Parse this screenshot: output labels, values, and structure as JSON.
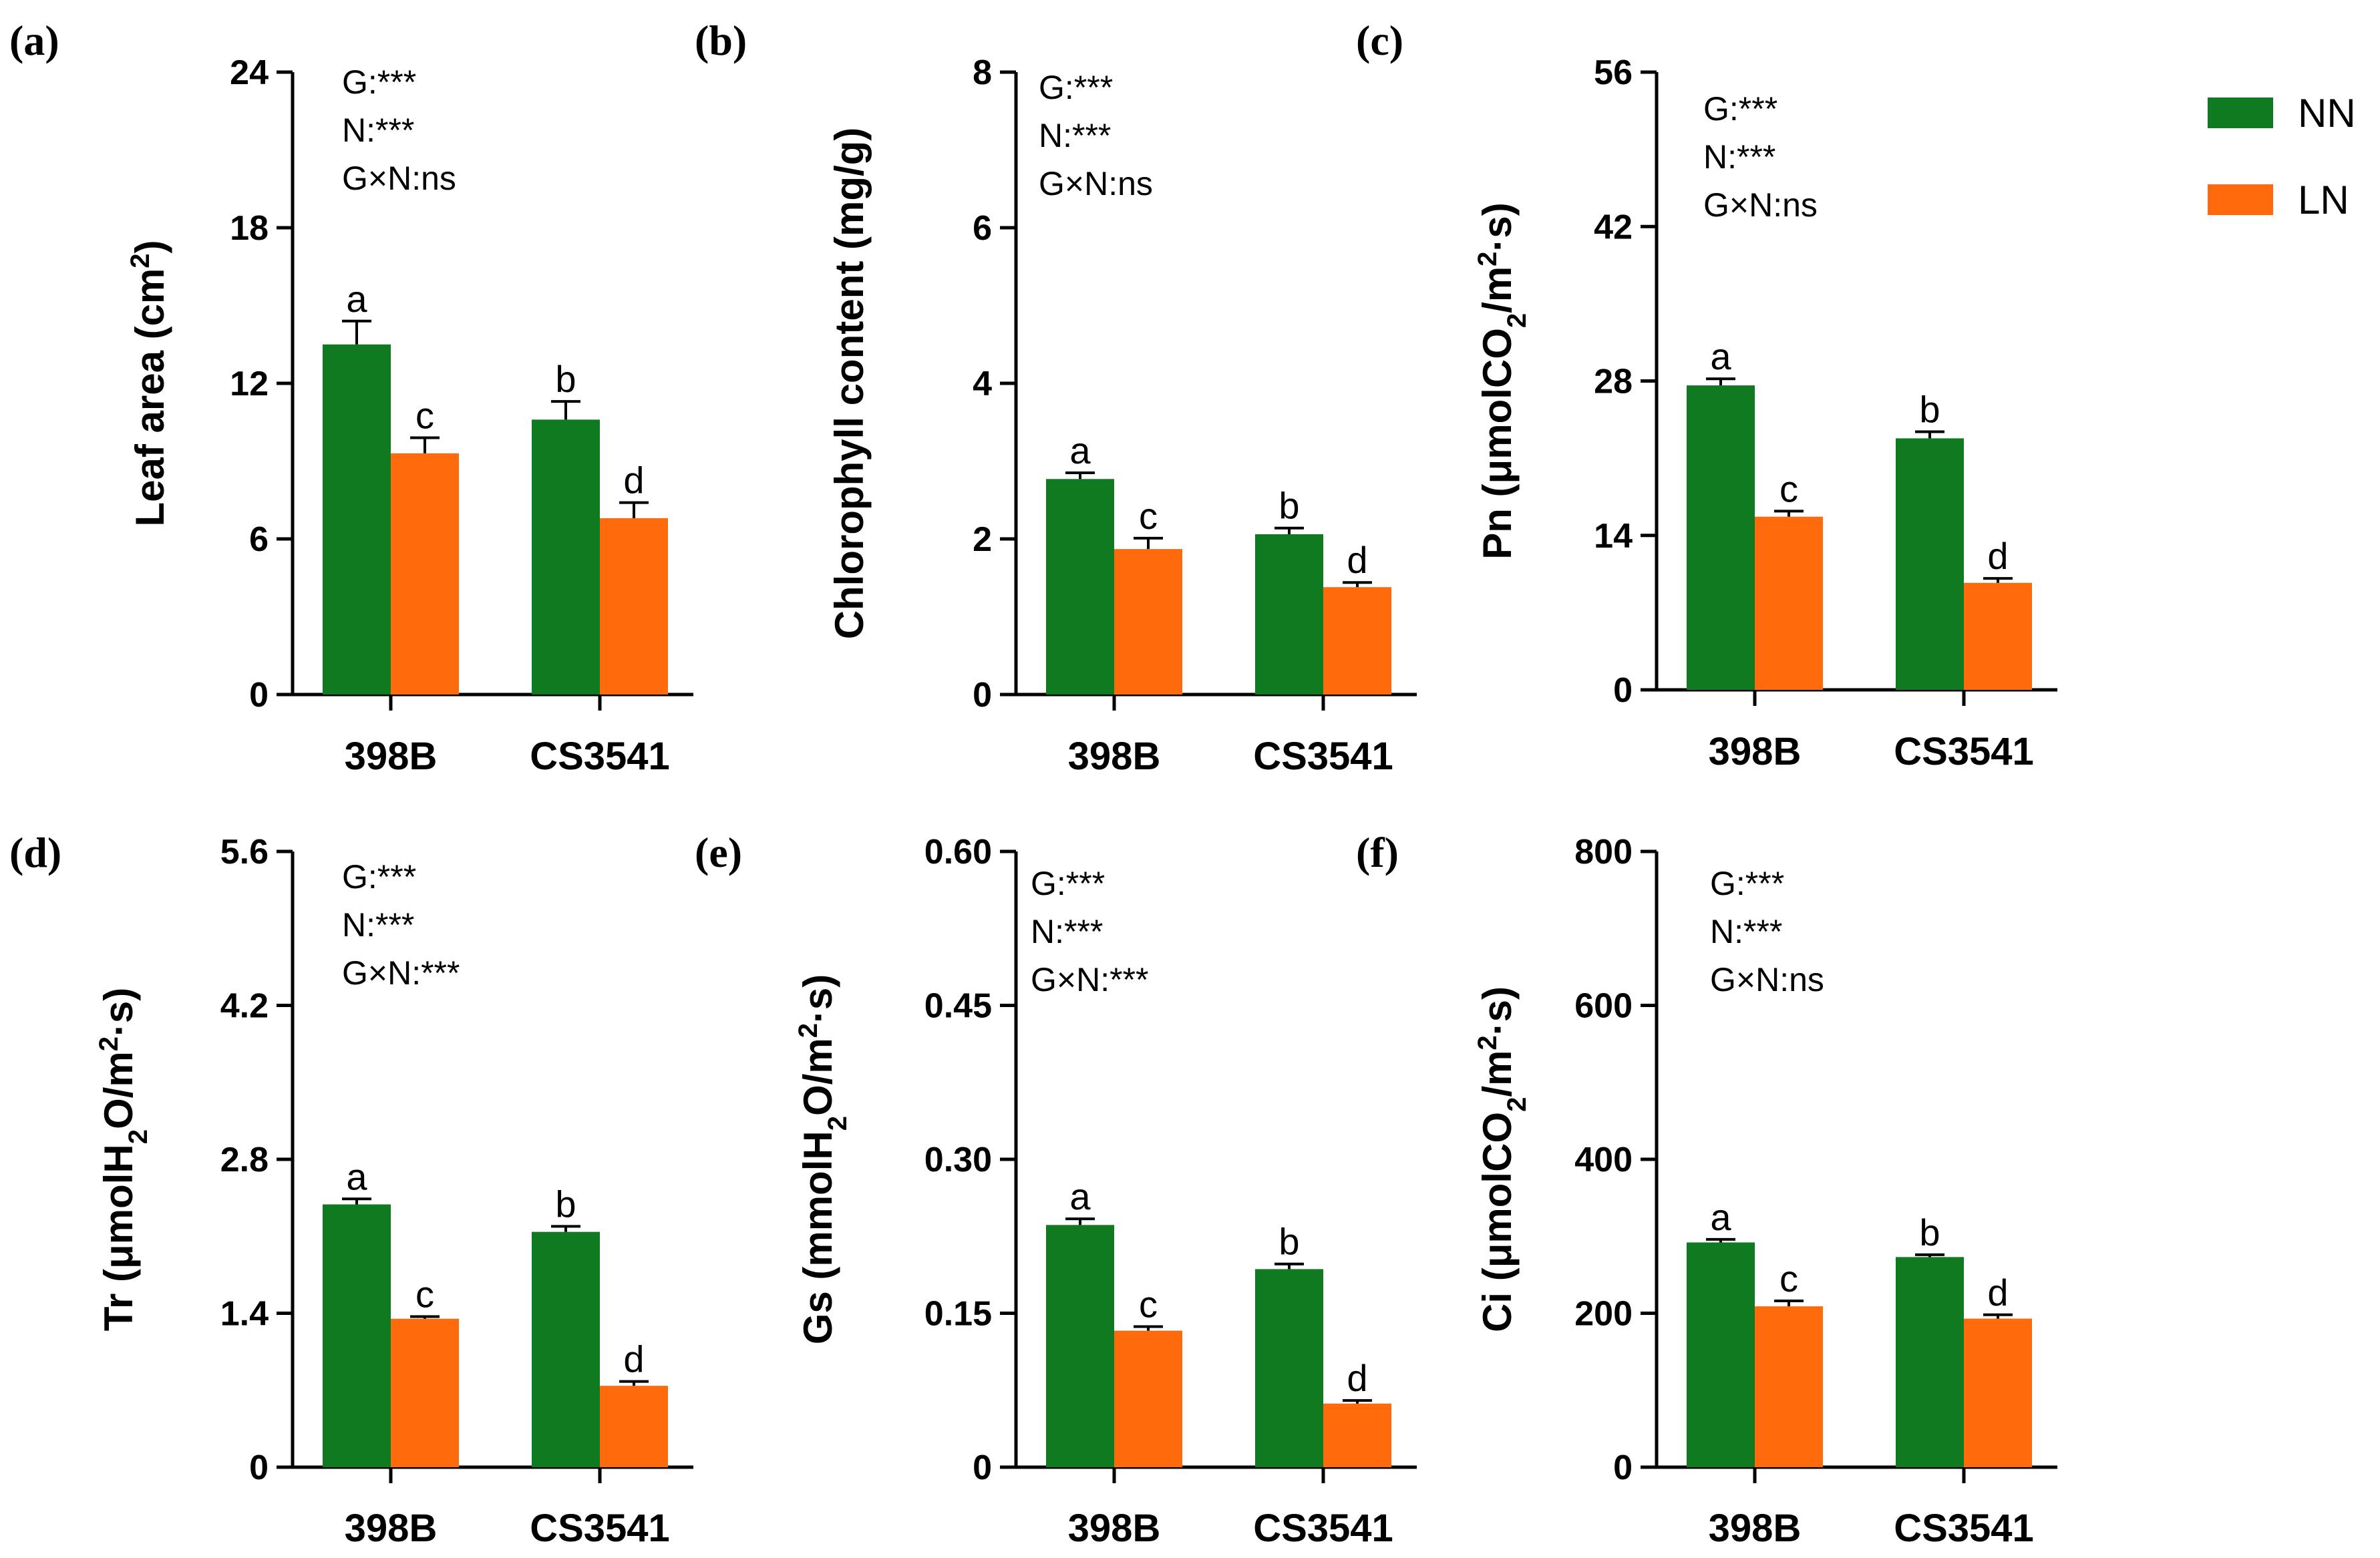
{
  "colors": {
    "NN": "#0f7a1f",
    "LN": "#ff6a0d",
    "axis": "#000000"
  },
  "legend": [
    {
      "key": "NN",
      "label": "NN"
    },
    {
      "key": "LN",
      "label": "LN"
    }
  ],
  "chart_data": [
    {
      "panel": "(a)",
      "type": "bar",
      "title": "",
      "ylabel": {
        "main": "Leaf area (cm",
        "sup": "2",
        "post": ")"
      },
      "categories": [
        "398B",
        "CS3541"
      ],
      "ylim": [
        0,
        24
      ],
      "yticks": [
        0,
        6,
        12,
        18,
        24
      ],
      "ytick_labels": [
        "0",
        "6",
        "12",
        "18",
        "24"
      ],
      "series": [
        {
          "name": "NN",
          "values": [
            13.5,
            10.6
          ],
          "errors": [
            0.9,
            0.7
          ],
          "letters": [
            "a",
            "b"
          ]
        },
        {
          "name": "LN",
          "values": [
            9.3,
            6.8
          ],
          "errors": [
            0.6,
            0.6
          ],
          "letters": [
            "c",
            "d"
          ]
        }
      ],
      "stats": [
        "G:***",
        "N:***",
        "G×N:ns"
      ]
    },
    {
      "panel": "(b)",
      "type": "bar",
      "title": "",
      "ylabel": {
        "main": "Chlorophyll content (mg/g)"
      },
      "categories": [
        "398B",
        "CS3541"
      ],
      "ylim": [
        0,
        8
      ],
      "yticks": [
        0,
        2,
        4,
        6,
        8
      ],
      "ytick_labels": [
        "0",
        "2",
        "4",
        "6",
        "8"
      ],
      "series": [
        {
          "name": "NN",
          "values": [
            2.77,
            2.06
          ],
          "errors": [
            0.08,
            0.08
          ],
          "letters": [
            "a",
            "b"
          ]
        },
        {
          "name": "LN",
          "values": [
            1.87,
            1.38
          ],
          "errors": [
            0.14,
            0.06
          ],
          "letters": [
            "c",
            "d"
          ]
        }
      ],
      "stats": [
        "G:***",
        "N:***",
        "G×N:ns"
      ]
    },
    {
      "panel": "(c)",
      "type": "bar",
      "title": "",
      "ylabel": {
        "main": "Pn (μmolCO",
        "sub": "2",
        "mid": "/m",
        "sup": "2",
        "post": "·s)"
      },
      "categories": [
        "398B",
        "CS3541"
      ],
      "ylim": [
        0,
        56
      ],
      "yticks": [
        0,
        14,
        28,
        42,
        56
      ],
      "ytick_labels": [
        "0",
        "14",
        "28",
        "42",
        "56"
      ],
      "series": [
        {
          "name": "NN",
          "values": [
            27.6,
            22.8
          ],
          "errors": [
            0.6,
            0.6
          ],
          "letters": [
            "a",
            "b"
          ]
        },
        {
          "name": "LN",
          "values": [
            15.7,
            9.7
          ],
          "errors": [
            0.5,
            0.4
          ],
          "letters": [
            "c",
            "d"
          ]
        }
      ],
      "stats": [
        "G:***",
        "N:***",
        "G×N:ns"
      ]
    },
    {
      "panel": "(d)",
      "type": "bar",
      "title": "",
      "ylabel": {
        "main": "Tr (μmolH",
        "sub": "2",
        "mid": "O/m",
        "sup": "2",
        "post": "·s)"
      },
      "categories": [
        "398B",
        "CS3541"
      ],
      "ylim": [
        0,
        5.6
      ],
      "yticks": [
        0,
        1.4,
        2.8,
        4.2,
        5.6
      ],
      "ytick_labels": [
        "0",
        "1.4",
        "2.8",
        "4.2",
        "5.6"
      ],
      "series": [
        {
          "name": "NN",
          "values": [
            2.39,
            2.14
          ],
          "errors": [
            0.05,
            0.05
          ],
          "letters": [
            "a",
            "b"
          ]
        },
        {
          "name": "LN",
          "values": [
            1.35,
            0.74
          ],
          "errors": [
            0.02,
            0.04
          ],
          "letters": [
            "c",
            "d"
          ]
        }
      ],
      "stats": [
        "G:***",
        "N:***",
        "G×N:***"
      ]
    },
    {
      "panel": "(e)",
      "type": "bar",
      "title": "",
      "ylabel": {
        "main": "Gs (mmolH",
        "sub": "2",
        "mid": "O/m",
        "sup": "2",
        "post": "·s)"
      },
      "categories": [
        "398B",
        "CS3541"
      ],
      "ylim": [
        0,
        0.6
      ],
      "yticks": [
        0,
        0.15,
        0.3,
        0.45,
        0.6
      ],
      "ytick_labels": [
        "0",
        "0.15",
        "0.30",
        "0.45",
        "0.60"
      ],
      "series": [
        {
          "name": "NN",
          "values": [
            0.236,
            0.193
          ],
          "errors": [
            0.006,
            0.005
          ],
          "letters": [
            "a",
            "b"
          ]
        },
        {
          "name": "LN",
          "values": [
            0.133,
            0.062
          ],
          "errors": [
            0.004,
            0.003
          ],
          "letters": [
            "c",
            "d"
          ]
        }
      ],
      "stats": [
        "G:***",
        "N:***",
        "G×N:***"
      ]
    },
    {
      "panel": "(f)",
      "type": "bar",
      "title": "",
      "ylabel": {
        "main": "Ci (μmolCO",
        "sub": "2",
        "mid": "/m",
        "sup": "2",
        "post": "·s)"
      },
      "categories": [
        "398B",
        "CS3541"
      ],
      "ylim": [
        0,
        800
      ],
      "yticks": [
        0,
        200,
        400,
        600,
        800
      ],
      "ytick_labels": [
        "0",
        "200",
        "400",
        "600",
        "800"
      ],
      "series": [
        {
          "name": "NN",
          "values": [
            292,
            273
          ],
          "errors": [
            4,
            3
          ],
          "letters": [
            "a",
            "b"
          ]
        },
        {
          "name": "LN",
          "values": [
            209,
            193
          ],
          "errors": [
            7,
            5
          ],
          "letters": [
            "c",
            "d"
          ]
        }
      ],
      "stats": [
        "G:***",
        "N:***",
        "G×N:ns"
      ]
    }
  ]
}
